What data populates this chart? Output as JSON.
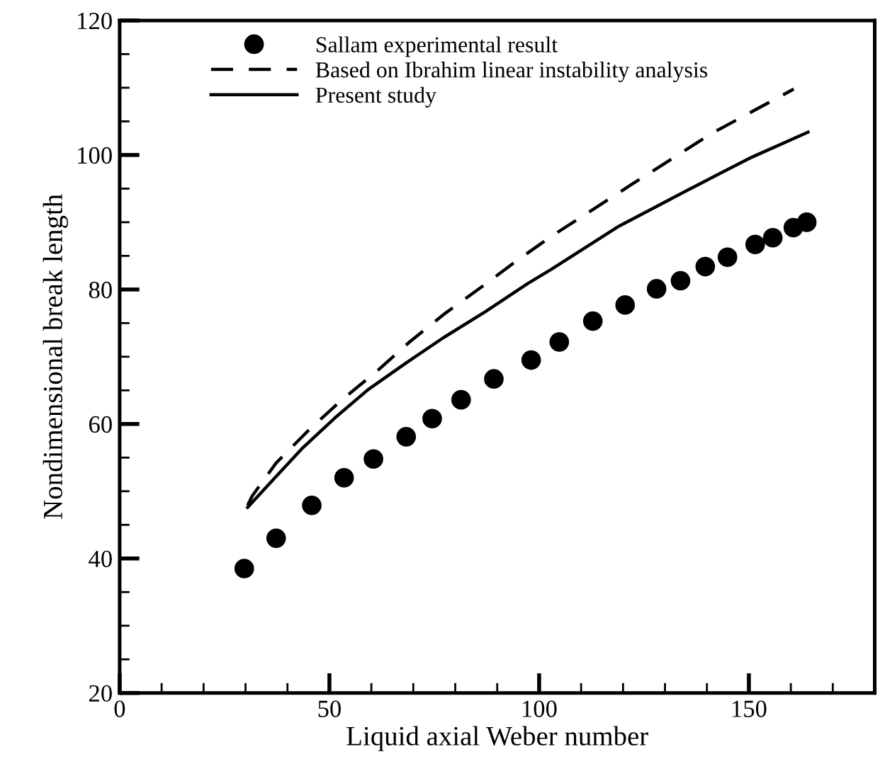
{
  "chart_data": {
    "type": "scatter",
    "xlabel": "Liquid axial Weber number",
    "ylabel": "Nondimensional break length",
    "xlim": [
      0,
      180
    ],
    "ylim": [
      20,
      120
    ],
    "xticks": [
      0,
      {
        "value": 10,
        "label": null
      },
      {
        "value": 20,
        "label": null
      },
      {
        "value": 30,
        "label": null
      },
      {
        "value": 40,
        "label": null
      },
      50,
      {
        "value": 60,
        "label": null
      },
      {
        "value": 70,
        "label": null
      },
      {
        "value": 80,
        "label": null
      },
      {
        "value": 90,
        "label": null
      },
      100,
      {
        "value": 110,
        "label": null
      },
      {
        "value": 120,
        "label": null
      },
      {
        "value": 130,
        "label": null
      },
      {
        "value": 140,
        "label": null
      },
      150,
      {
        "value": 160,
        "label": null
      },
      {
        "value": 170,
        "label": null
      }
    ],
    "yticks": [
      20,
      {
        "value": 25,
        "label": null
      },
      {
        "value": 30,
        "label": null
      },
      {
        "value": 35,
        "label": null
      },
      40,
      {
        "value": 45,
        "label": null
      },
      {
        "value": 50,
        "label": null
      },
      {
        "value": 55,
        "label": null
      },
      60,
      {
        "value": 65,
        "label": null
      },
      {
        "value": 70,
        "label": null
      },
      {
        "value": 75,
        "label": null
      },
      80,
      {
        "value": 85,
        "label": null
      },
      {
        "value": 90,
        "label": null
      },
      {
        "value": 95,
        "label": null
      },
      100,
      {
        "value": 105,
        "label": null
      },
      {
        "value": 110,
        "label": null
      },
      {
        "value": 115,
        "label": null
      },
      120
    ],
    "legend": "top left",
    "grid": false,
    "series": [
      {
        "name": "Sallam experimental result",
        "marker": "circle",
        "color": "#000000",
        "x": [
          29.7,
          37.3,
          45.8,
          53.5,
          60.5,
          68.3,
          74.5,
          81.4,
          89.2,
          98.1,
          104.8,
          112.8,
          120.5,
          128.0,
          133.7,
          139.6,
          144.9,
          151.5,
          155.7,
          160.6,
          163.8
        ],
        "values": [
          38.5,
          43.0,
          47.9,
          52.0,
          54.8,
          58.1,
          60.8,
          63.6,
          66.7,
          69.5,
          72.2,
          75.3,
          77.7,
          80.1,
          81.3,
          83.4,
          84.8,
          86.7,
          87.7,
          89.2,
          90.0
        ]
      },
      {
        "name": "Based on Ibrahim linear instability analysis",
        "type": "line",
        "line_style": "dashed",
        "color": "#000000",
        "x": [
          30.5,
          31.6,
          37.3,
          44.6,
          53.0,
          61.4,
          69.3,
          77.7,
          86.1,
          94.5,
          102.9,
          122.0,
          141.1,
          160.7
        ],
        "values": [
          47.9,
          49.3,
          54.2,
          58.8,
          63.6,
          67.9,
          72.3,
          76.5,
          80.3,
          84.2,
          87.9,
          95.6,
          103.2,
          109.8
        ]
      },
      {
        "name": "Present study",
        "type": "line",
        "line_style": "solid",
        "color": "#000000",
        "x": [
          30.5,
          36.7,
          43.4,
          51.3,
          59.2,
          68.1,
          77.1,
          87.2,
          97.3,
          102.9,
          118.7,
          135.5,
          150.1,
          164.1
        ],
        "values": [
          47.6,
          51.8,
          56.3,
          60.9,
          65.1,
          69.0,
          72.8,
          76.7,
          80.9,
          83.0,
          89.3,
          94.8,
          99.5,
          103.4
        ]
      }
    ]
  }
}
